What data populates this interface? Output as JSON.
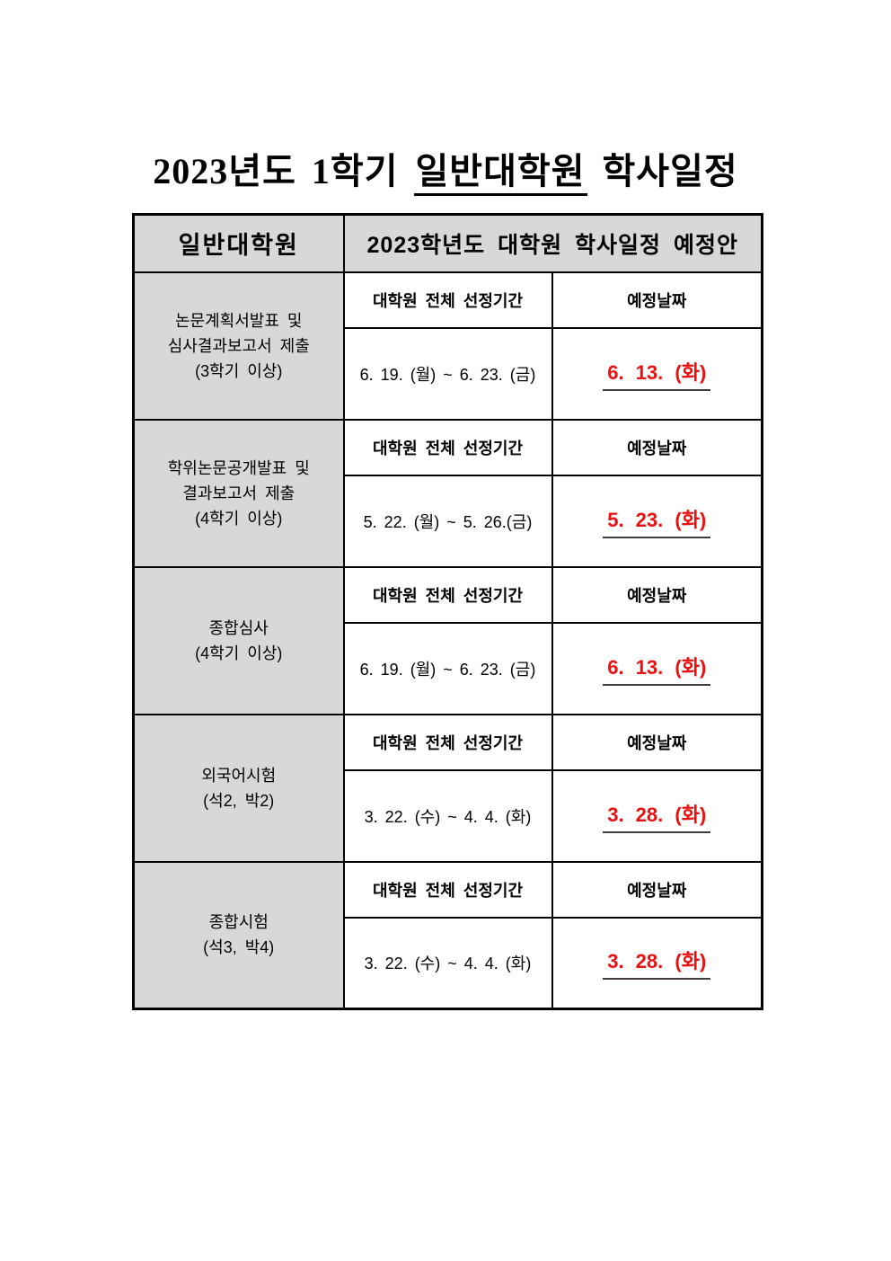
{
  "title": {
    "prefix": "2023년도 1학기",
    "underlined": "일반대학원",
    "suffix": "학사일정"
  },
  "table": {
    "header": {
      "col1": "일반대학원",
      "col2": "2023학년도 대학원 학사일정 예정안"
    },
    "sub_headers": {
      "period": "대학원 전체 선정기간",
      "date": "예정날짜"
    },
    "sections": [
      {
        "label_lines": [
          "논문계획서발표 및",
          "심사결과보고서 제출",
          "(3학기 이상)"
        ],
        "period": "6. 19. (월) ~ 6. 23. (금)",
        "date": "6. 13. (화)"
      },
      {
        "label_lines": [
          "학위논문공개발표 및",
          "결과보고서 제출",
          "(4학기 이상)"
        ],
        "period": "5. 22. (월) ~ 5. 26.(금)",
        "date": "5. 23. (화)"
      },
      {
        "label_lines": [
          "종합심사",
          "(4학기 이상)"
        ],
        "period": "6. 19. (월) ~ 6. 23. (금)",
        "date": "6. 13. (화)"
      },
      {
        "label_lines": [
          "외국어시험",
          "(석2, 박2)"
        ],
        "period": "3. 22. (수) ~ 4. 4. (화)",
        "date": "3. 28. (화)"
      },
      {
        "label_lines": [
          "종합시험",
          "(석3, 박4)"
        ],
        "period": "3. 22. (수) ~ 4. 4. (화)",
        "date": "3. 28. (화)"
      }
    ]
  },
  "colors": {
    "cell_gray": "#d8d8d8",
    "highlight_red": "#e81010",
    "underline_dark": "#443c3c",
    "border_black": "#000000"
  }
}
